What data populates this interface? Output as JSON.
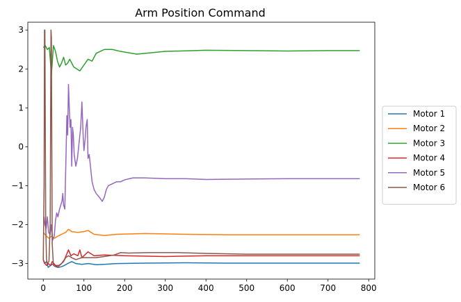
{
  "chart_data": {
    "type": "line",
    "title": "Arm Position Command",
    "xlabel": "",
    "ylabel": "",
    "xlim": [
      -38,
      815
    ],
    "ylim": [
      -3.4,
      3.2
    ],
    "xticks": [
      0,
      100,
      200,
      300,
      400,
      500,
      600,
      700,
      800
    ],
    "yticks": [
      -3,
      -2,
      -1,
      0,
      1,
      2,
      3
    ],
    "grid": false,
    "legend_position": "outside-right",
    "series": [
      {
        "name": "Motor 1",
        "color": "#1f77b4",
        "points": [
          [
            0,
            -2.9
          ],
          [
            3,
            -3.0
          ],
          [
            8,
            -2.95
          ],
          [
            12,
            -3.1
          ],
          [
            18,
            -3.05
          ],
          [
            25,
            -3.0
          ],
          [
            30,
            -3.05
          ],
          [
            38,
            -3.1
          ],
          [
            45,
            -3.08
          ],
          [
            52,
            -3.05
          ],
          [
            60,
            -3.0
          ],
          [
            70,
            -2.95
          ],
          [
            80,
            -3.0
          ],
          [
            95,
            -3.02
          ],
          [
            110,
            -3.0
          ],
          [
            130,
            -3.03
          ],
          [
            150,
            -3.02
          ],
          [
            180,
            -3.0
          ],
          [
            250,
            -2.99
          ],
          [
            350,
            -2.98
          ],
          [
            450,
            -2.99
          ],
          [
            550,
            -2.99
          ],
          [
            650,
            -2.99
          ],
          [
            778,
            -2.99
          ]
        ]
      },
      {
        "name": "Motor 2",
        "color": "#ff7f0e",
        "points": [
          [
            0,
            -2.2
          ],
          [
            4,
            -2.25
          ],
          [
            8,
            -2.3
          ],
          [
            14,
            -2.35
          ],
          [
            20,
            -2.3
          ],
          [
            28,
            -2.35
          ],
          [
            35,
            -2.3
          ],
          [
            45,
            -2.25
          ],
          [
            55,
            -2.2
          ],
          [
            62,
            -2.12
          ],
          [
            70,
            -2.18
          ],
          [
            85,
            -2.2
          ],
          [
            100,
            -2.18
          ],
          [
            110,
            -2.15
          ],
          [
            125,
            -2.25
          ],
          [
            150,
            -2.28
          ],
          [
            180,
            -2.25
          ],
          [
            250,
            -2.23
          ],
          [
            350,
            -2.25
          ],
          [
            450,
            -2.26
          ],
          [
            550,
            -2.26
          ],
          [
            650,
            -2.26
          ],
          [
            778,
            -2.26
          ]
        ]
      },
      {
        "name": "Motor 3",
        "color": "#2ca02c",
        "points": [
          [
            0,
            2.55
          ],
          [
            5,
            2.6
          ],
          [
            10,
            2.5
          ],
          [
            15,
            2.55
          ],
          [
            20,
            1.85
          ],
          [
            25,
            2.6
          ],
          [
            30,
            2.45
          ],
          [
            35,
            2.2
          ],
          [
            40,
            2.05
          ],
          [
            45,
            2.15
          ],
          [
            50,
            2.3
          ],
          [
            55,
            2.1
          ],
          [
            60,
            2.15
          ],
          [
            65,
            2.25
          ],
          [
            75,
            2.05
          ],
          [
            90,
            1.95
          ],
          [
            100,
            2.1
          ],
          [
            110,
            2.25
          ],
          [
            120,
            2.2
          ],
          [
            130,
            2.4
          ],
          [
            140,
            2.45
          ],
          [
            150,
            2.5
          ],
          [
            170,
            2.5
          ],
          [
            190,
            2.45
          ],
          [
            230,
            2.38
          ],
          [
            300,
            2.45
          ],
          [
            400,
            2.48
          ],
          [
            500,
            2.47
          ],
          [
            600,
            2.46
          ],
          [
            700,
            2.47
          ],
          [
            778,
            2.47
          ]
        ]
      },
      {
        "name": "Motor 4",
        "color": "#d62728",
        "points": [
          [
            0,
            -2.9
          ],
          [
            4,
            -3.0
          ],
          [
            8,
            -3.05
          ],
          [
            12,
            -3.0
          ],
          [
            18,
            -3.05
          ],
          [
            22,
            -2.95
          ],
          [
            30,
            -3.05
          ],
          [
            38,
            -3.05
          ],
          [
            45,
            -3.0
          ],
          [
            52,
            -2.9
          ],
          [
            58,
            -2.75
          ],
          [
            62,
            -2.65
          ],
          [
            68,
            -2.8
          ],
          [
            75,
            -2.75
          ],
          [
            85,
            -2.8
          ],
          [
            90,
            -2.65
          ],
          [
            95,
            -2.85
          ],
          [
            105,
            -2.75
          ],
          [
            110,
            -2.7
          ],
          [
            125,
            -2.8
          ],
          [
            150,
            -2.78
          ],
          [
            200,
            -2.8
          ],
          [
            300,
            -2.82
          ],
          [
            400,
            -2.8
          ],
          [
            500,
            -2.8
          ],
          [
            600,
            -2.8
          ],
          [
            700,
            -2.8
          ],
          [
            778,
            -2.8
          ]
        ]
      },
      {
        "name": "Motor 5",
        "color": "#9467bd",
        "points": [
          [
            2,
            -1.8
          ],
          [
            4,
            -2.0
          ],
          [
            7,
            -2.1
          ],
          [
            10,
            -1.8
          ],
          [
            13,
            -2.2
          ],
          [
            17,
            -2.25
          ],
          [
            20,
            -2.0
          ],
          [
            23,
            -2.4
          ],
          [
            27,
            -2.3
          ],
          [
            30,
            -1.9
          ],
          [
            33,
            -1.7
          ],
          [
            36,
            -1.8
          ],
          [
            40,
            -1.6
          ],
          [
            43,
            -1.5
          ],
          [
            46,
            -1.4
          ],
          [
            48,
            -1.2
          ],
          [
            50,
            -1.5
          ],
          [
            53,
            -1.6
          ],
          [
            56,
            -0.2
          ],
          [
            58,
            0.8
          ],
          [
            60,
            0.3
          ],
          [
            62,
            1.6
          ],
          [
            64,
            1.0
          ],
          [
            66,
            0.5
          ],
          [
            68,
            0.7
          ],
          [
            70,
            -0.5
          ],
          [
            72,
            0.5
          ],
          [
            74,
            0.3
          ],
          [
            76,
            -0.2
          ],
          [
            80,
            -0.5
          ],
          [
            84,
            -0.3
          ],
          [
            88,
            0.1
          ],
          [
            92,
            0.5
          ],
          [
            95,
            1.15
          ],
          [
            98,
            0.3
          ],
          [
            100,
            -0.1
          ],
          [
            103,
            0.2
          ],
          [
            105,
            0.5
          ],
          [
            108,
            0.7
          ],
          [
            110,
            -0.3
          ],
          [
            113,
            -0.2
          ],
          [
            116,
            -0.5
          ],
          [
            120,
            -0.9
          ],
          [
            125,
            -1.1
          ],
          [
            130,
            -1.2
          ],
          [
            138,
            -1.3
          ],
          [
            145,
            -1.4
          ],
          [
            150,
            -1.3
          ],
          [
            155,
            -1.1
          ],
          [
            160,
            -1.0
          ],
          [
            170,
            -0.95
          ],
          [
            180,
            -0.9
          ],
          [
            190,
            -0.9
          ],
          [
            200,
            -0.85
          ],
          [
            220,
            -0.8
          ],
          [
            250,
            -0.8
          ],
          [
            300,
            -0.82
          ],
          [
            350,
            -0.82
          ],
          [
            400,
            -0.84
          ],
          [
            500,
            -0.83
          ],
          [
            600,
            -0.82
          ],
          [
            700,
            -0.82
          ],
          [
            778,
            -0.82
          ]
        ]
      },
      {
        "name": "Motor 6",
        "color": "#8c564b",
        "points": [
          [
            0,
            -2.9
          ],
          [
            2,
            -1.0
          ],
          [
            3,
            3.0
          ],
          [
            4,
            3.0
          ],
          [
            5,
            0.5
          ],
          [
            6,
            -2.0
          ],
          [
            8,
            -2.9
          ],
          [
            10,
            -3.0
          ],
          [
            14,
            -2.95
          ],
          [
            17,
            -2.0
          ],
          [
            19,
            3.0
          ],
          [
            20,
            2.8
          ],
          [
            21,
            0.0
          ],
          [
            22,
            -2.5
          ],
          [
            25,
            -3.05
          ],
          [
            30,
            -3.08
          ],
          [
            35,
            -3.1
          ],
          [
            40,
            -3.05
          ],
          [
            45,
            -3.0
          ],
          [
            50,
            -2.95
          ],
          [
            55,
            -2.85
          ],
          [
            62,
            -2.8
          ],
          [
            70,
            -2.85
          ],
          [
            80,
            -2.9
          ],
          [
            95,
            -2.85
          ],
          [
            110,
            -2.85
          ],
          [
            130,
            -2.85
          ],
          [
            150,
            -2.82
          ],
          [
            175,
            -2.78
          ],
          [
            190,
            -2.72
          ],
          [
            210,
            -2.73
          ],
          [
            260,
            -2.72
          ],
          [
            330,
            -2.72
          ],
          [
            400,
            -2.74
          ],
          [
            500,
            -2.76
          ],
          [
            600,
            -2.76
          ],
          [
            700,
            -2.76
          ],
          [
            778,
            -2.76
          ]
        ]
      }
    ]
  }
}
